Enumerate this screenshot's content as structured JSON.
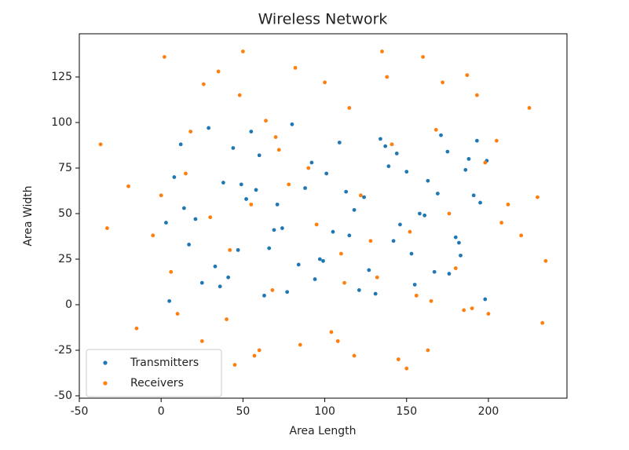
{
  "chart_data": {
    "type": "scatter",
    "title": "Wireless Network",
    "x_label": "Area Length",
    "y_label": "Area Width",
    "xlim": [
      -50,
      248
    ],
    "ylim": [
      -51.3,
      148.7
    ],
    "xticks": [
      -50,
      0,
      50,
      100,
      150,
      200
    ],
    "yticks": [
      -50,
      -25,
      0,
      25,
      50,
      75,
      100,
      125
    ],
    "legend": "lower left",
    "series": [
      {
        "name": "Transmitters",
        "color": "#1f77b4",
        "x": [
          3,
          12,
          25,
          38,
          47,
          55,
          63,
          71,
          84,
          92,
          105,
          113,
          121,
          134,
          142,
          150,
          158,
          167,
          175,
          183,
          191,
          198,
          8,
          17,
          29,
          41,
          52,
          60,
          69,
          77,
          88,
          97,
          109,
          118,
          127,
          139,
          146,
          155,
          163,
          171,
          180,
          188,
          195,
          5,
          21,
          33,
          44,
          58,
          66,
          80,
          94,
          101,
          115,
          124,
          131,
          144,
          153,
          161,
          176,
          186,
          193,
          14,
          36,
          49,
          74,
          99,
          137,
          169,
          182,
          199
        ],
        "values": [
          45,
          88,
          12,
          67,
          30,
          95,
          5,
          55,
          22,
          78,
          40,
          62,
          8,
          91,
          35,
          73,
          50,
          18,
          84,
          27,
          60,
          3,
          70,
          33,
          97,
          15,
          58,
          82,
          41,
          7,
          64,
          25,
          89,
          52,
          19,
          76,
          44,
          11,
          68,
          93,
          37,
          80,
          56,
          2,
          47,
          21,
          86,
          63,
          31,
          99,
          14,
          72,
          38,
          59,
          6,
          83,
          28,
          49,
          17,
          74,
          90,
          53,
          10,
          66,
          42,
          24,
          87,
          61,
          34,
          79
        ]
      },
      {
        "name": "Receivers",
        "color": "#ff7f0e",
        "x": [
          -37,
          -33,
          -15,
          -20,
          -5,
          2,
          10,
          18,
          26,
          35,
          48,
          50,
          57,
          64,
          72,
          82,
          90,
          100,
          108,
          115,
          122,
          135,
          138,
          145,
          152,
          160,
          163,
          172,
          180,
          187,
          193,
          205,
          212,
          225,
          230,
          233,
          235,
          0,
          6,
          15,
          30,
          42,
          55,
          68,
          78,
          95,
          104,
          112,
          128,
          141,
          156,
          168,
          176,
          190,
          198,
          208,
          220,
          45,
          60,
          85,
          118,
          132,
          150,
          165,
          185,
          40,
          70,
          110,
          25,
          200
        ],
        "values": [
          88,
          42,
          -13,
          65,
          38,
          136,
          -5,
          95,
          121,
          128,
          115,
          139,
          -28,
          101,
          85,
          130,
          75,
          122,
          -20,
          108,
          60,
          139,
          125,
          -30,
          40,
          136,
          -25,
          122,
          20,
          126,
          115,
          90,
          55,
          108,
          59,
          -10,
          24,
          60,
          18,
          72,
          48,
          30,
          55,
          8,
          66,
          44,
          -15,
          12,
          35,
          88,
          5,
          96,
          50,
          -2,
          78,
          45,
          38,
          -33,
          -25,
          -22,
          -28,
          15,
          -35,
          2,
          -3,
          -8,
          92,
          28,
          -20,
          -5
        ]
      }
    ]
  }
}
